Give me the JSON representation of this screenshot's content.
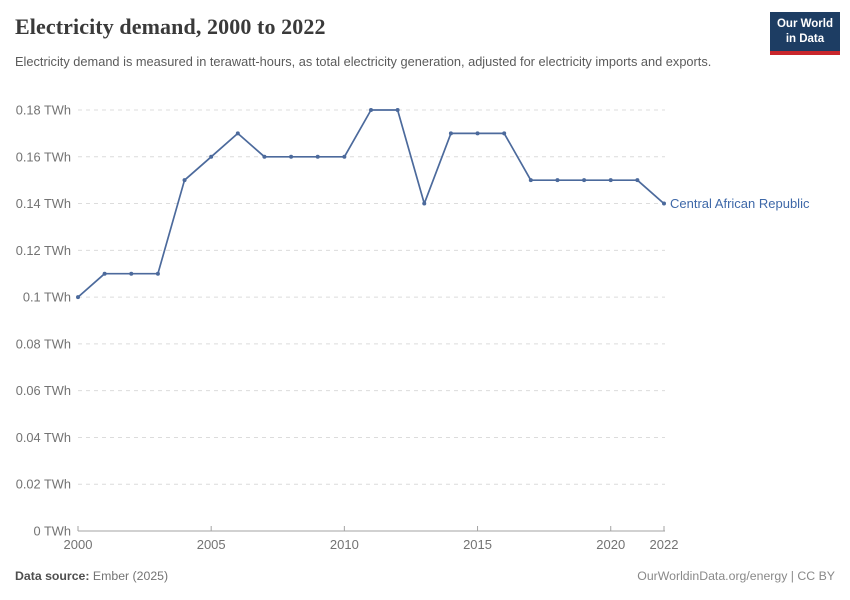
{
  "header": {
    "title": "Electricity demand, 2000 to 2022",
    "subtitle": "Electricity demand is measured in terawatt-hours, as total electricity generation, adjusted for electricity imports and exports.",
    "logo": {
      "line1": "Our World",
      "line2": "in Data"
    }
  },
  "chart_data": {
    "type": "line",
    "title": "Electricity demand, 2000 to 2022",
    "unit": "TWh",
    "x": [
      2000,
      2001,
      2002,
      2003,
      2004,
      2005,
      2006,
      2007,
      2008,
      2009,
      2010,
      2011,
      2012,
      2013,
      2014,
      2015,
      2016,
      2017,
      2018,
      2019,
      2020,
      2021,
      2022
    ],
    "series": [
      {
        "name": "Central African Republic",
        "values": [
          0.1,
          0.11,
          0.11,
          0.11,
          0.15,
          0.16,
          0.17,
          0.16,
          0.16,
          0.16,
          0.16,
          0.18,
          0.18,
          0.14,
          0.17,
          0.17,
          0.17,
          0.15,
          0.15,
          0.15,
          0.15,
          0.15,
          0.14
        ]
      }
    ],
    "ylim": [
      0,
      0.18
    ],
    "ytick_step": 0.02,
    "ytick_suffix": " TWh",
    "xticks": [
      2000,
      2005,
      2010,
      2015,
      2020,
      2022
    ],
    "grid": "dashed-horizontal",
    "legend_position": "end-of-line-label",
    "colors": {
      "line": "#4c6a9c",
      "entity_label": "#3e68a8",
      "grid": "#dcdcdc",
      "axis": "#a3a3a3",
      "tick_text": "#737373"
    }
  },
  "footer": {
    "source_label": "Data source:",
    "source_value": " Ember (2025)",
    "credit": "OurWorldinData.org/energy | CC BY"
  }
}
